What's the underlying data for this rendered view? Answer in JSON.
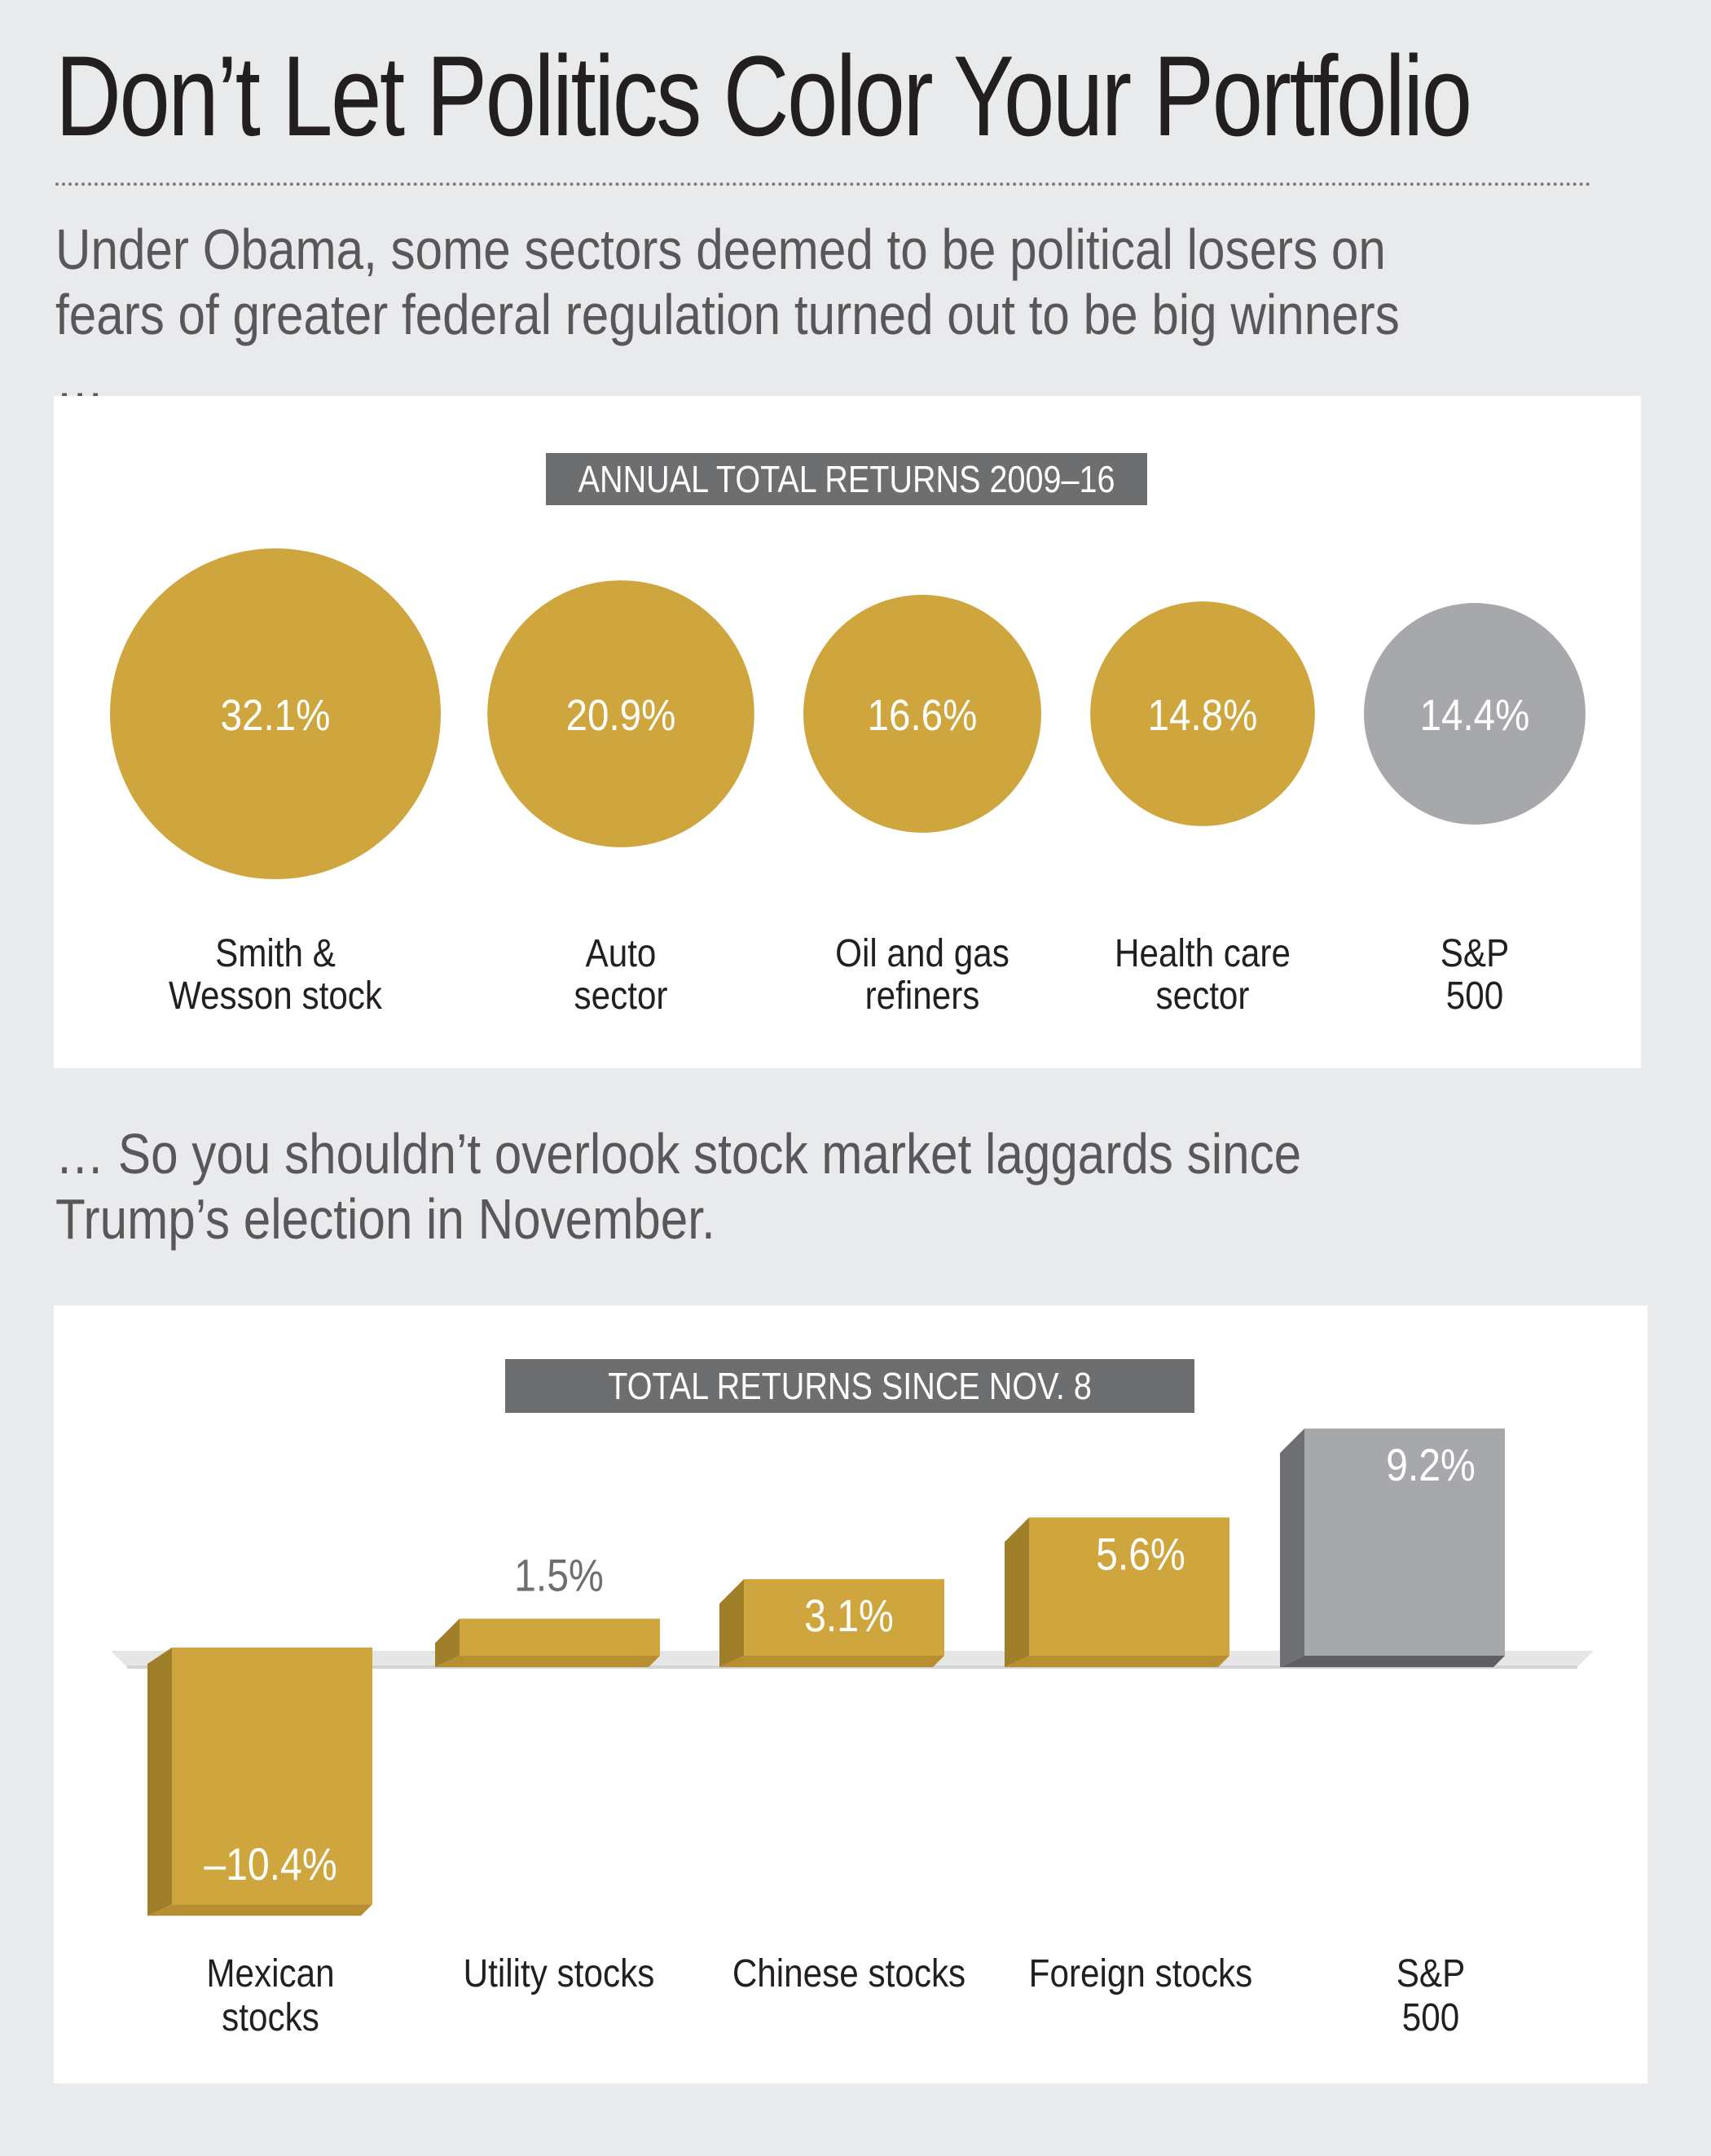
{
  "title": "Don’t Let Politics Color Your Portfolio",
  "intro_top": "Under Obama, some sectors deemed to be political losers on fears of greater federal regulation turned out to be big winners …",
  "intro_bottom": "… So you shouldn’t overlook stock market laggards since Trump’s election in November.",
  "colors": {
    "gold": "#cfa63e",
    "gold_dark": "#9f7f2a",
    "gold_top": "#b88f30",
    "gray": "#a7a8ab",
    "gray_dark": "#6f7073",
    "header_chip": "#6d6e70",
    "background": "#e9eaeb"
  },
  "chart_data": [
    {
      "type": "bubble",
      "title": "ANNUAL TOTAL RETURNS 2009–16",
      "categories": [
        "Smith & Wesson stock",
        "Auto sector",
        "Oil and gas refiners",
        "Health care sector",
        "S&P 500"
      ],
      "category_lines": [
        [
          "Smith &",
          "Wesson stock"
        ],
        [
          "Auto",
          "sector"
        ],
        [
          "Oil and gas",
          "refiners"
        ],
        [
          "Health care",
          "sector"
        ],
        [
          "S&P",
          "500"
        ]
      ],
      "values": [
        32.1,
        20.9,
        16.6,
        14.8,
        14.4
      ],
      "value_labels": [
        "32.1%",
        "20.9%",
        "16.6%",
        "14.8%",
        "14.4%"
      ],
      "highlight": [
        true,
        true,
        true,
        true,
        false
      ],
      "unit": "%"
    },
    {
      "type": "bar",
      "title": "TOTAL RETURNS SINCE NOV. 8",
      "categories": [
        "Mexican stocks",
        "Utility stocks",
        "Chinese stocks",
        "Foreign stocks",
        "S&P 500"
      ],
      "category_lines": [
        [
          "Mexican",
          "stocks"
        ],
        [
          "Utility stocks"
        ],
        [
          "Chinese stocks"
        ],
        [
          "Foreign stocks"
        ],
        [
          "S&P",
          "500"
        ]
      ],
      "values": [
        -10.4,
        1.5,
        3.1,
        5.6,
        9.2
      ],
      "value_labels": [
        "–10.4%",
        "1.5%",
        "3.1%",
        "5.6%",
        "9.2%"
      ],
      "highlight": [
        true,
        true,
        true,
        true,
        false
      ],
      "unit": "%"
    }
  ]
}
